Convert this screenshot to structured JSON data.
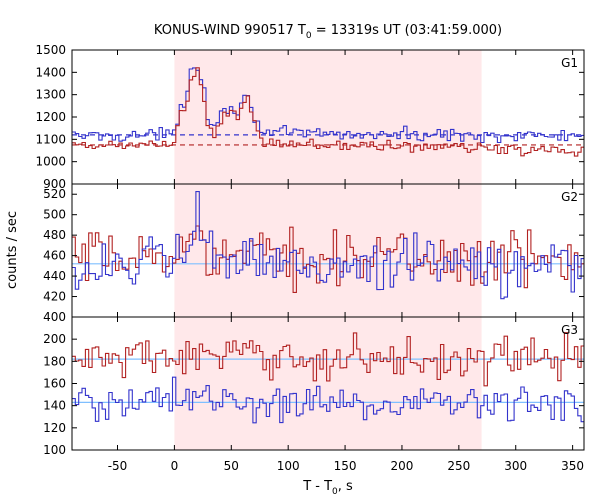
{
  "chart_data": {
    "type": "line",
    "title": {
      "prefix": "KONUS-WIND 990517 T",
      "sub": "0",
      "suffix": " = 13319s UT (03:41:59.000)"
    },
    "xlabel": {
      "prefix": "T - T",
      "sub": "0",
      "suffix": ", s"
    },
    "ylabel": "counts / sec",
    "xlim": [
      -90,
      360
    ],
    "xticks": [
      -50,
      0,
      50,
      100,
      150,
      200,
      250,
      300,
      350
    ],
    "shaded_interval": [
      0,
      270
    ],
    "colors": {
      "red": "#b22222",
      "blue": "#3333cc",
      "light_blue": "#7fbfff",
      "shade": "#ffe8ea"
    },
    "panels": [
      {
        "label": "G1",
        "ylim": [
          900,
          1500
        ],
        "yticks": [
          900,
          1000,
          1100,
          1200,
          1300,
          1400,
          1500
        ],
        "series": [
          {
            "color": "blue",
            "x": [
              -90,
              0,
              5,
              10,
              15,
              20,
              25,
              30,
              35,
              40,
              45,
              50,
              55,
              60,
              65,
              70,
              75,
              80,
              90,
              120,
              180,
              240,
              300,
              360
            ],
            "y": [
              1115,
              1120,
              1250,
              1280,
              1420,
              1430,
              1380,
              1180,
              1160,
              1210,
              1240,
              1250,
              1230,
              1260,
              1300,
              1220,
              1150,
              1130,
              1125,
              1125,
              1120,
              1120,
              1115,
              1115
            ]
          },
          {
            "color": "red",
            "x": [
              -90,
              0,
              5,
              10,
              15,
              20,
              25,
              30,
              35,
              40,
              45,
              50,
              55,
              60,
              65,
              70,
              75,
              80,
              90,
              120,
              180,
              240,
              300,
              360
            ],
            "y": [
              1065,
              1080,
              1210,
              1240,
              1380,
              1390,
              1340,
              1140,
              1120,
              1170,
              1210,
              1230,
              1200,
              1220,
              1280,
              1180,
              1100,
              1085,
              1080,
              1075,
              1070,
              1065,
              1055,
              1050
            ]
          }
        ],
        "backgrounds": [
          {
            "color": "blue",
            "x": [
              -90,
              360
            ],
            "y": [
              1120,
              1120
            ]
          },
          {
            "color": "red",
            "x": [
              -90,
              360
            ],
            "y": [
              1075,
              1075
            ]
          }
        ]
      },
      {
        "label": "G2",
        "ylim": [
          400,
          530
        ],
        "yticks": [
          400,
          420,
          440,
          460,
          480,
          500,
          520
        ],
        "series": [
          {
            "color": "red",
            "x": [
              -90,
              0,
              10,
              15,
              20,
              25,
              30,
              40,
              60,
              100,
              150,
              200,
              250,
              300,
              360
            ],
            "y": [
              455,
              458,
              462,
              480,
              492,
              488,
              470,
              460,
              458,
              459,
              460,
              458,
              457,
              455,
              456
            ]
          },
          {
            "color": "blue",
            "x": [
              -90,
              0,
              10,
              15,
              20,
              25,
              30,
              40,
              60,
              100,
              150,
              200,
              250,
              300,
              360
            ],
            "y": [
              450,
              452,
              455,
              478,
              506,
              482,
              464,
              455,
              452,
              451,
              452,
              451,
              450,
              449,
              450
            ]
          }
        ],
        "backgrounds": [
          {
            "color": "light_blue",
            "x": [
              -90,
              360
            ],
            "y": [
              452,
              452
            ]
          }
        ]
      },
      {
        "label": "G3",
        "ylim": [
          100,
          220
        ],
        "yticks": [
          100,
          120,
          140,
          160,
          180,
          200
        ],
        "series": [
          {
            "color": "red",
            "x": [
              -90,
              0,
              100,
              200,
              300,
              360
            ],
            "y": [
              182,
              184,
              183,
              182,
              183,
              183
            ]
          },
          {
            "color": "blue",
            "x": [
              -90,
              0,
              100,
              200,
              300,
              360
            ],
            "y": [
              143,
              144,
              143,
              142,
              143,
              143
            ]
          }
        ],
        "backgrounds": [
          {
            "color": "light_blue",
            "x": [
              -90,
              360
            ],
            "y": [
              143,
              143
            ]
          },
          {
            "color": "light_blue",
            "x": [
              -90,
              360
            ],
            "y": [
              182,
              182
            ]
          }
        ]
      }
    ]
  }
}
